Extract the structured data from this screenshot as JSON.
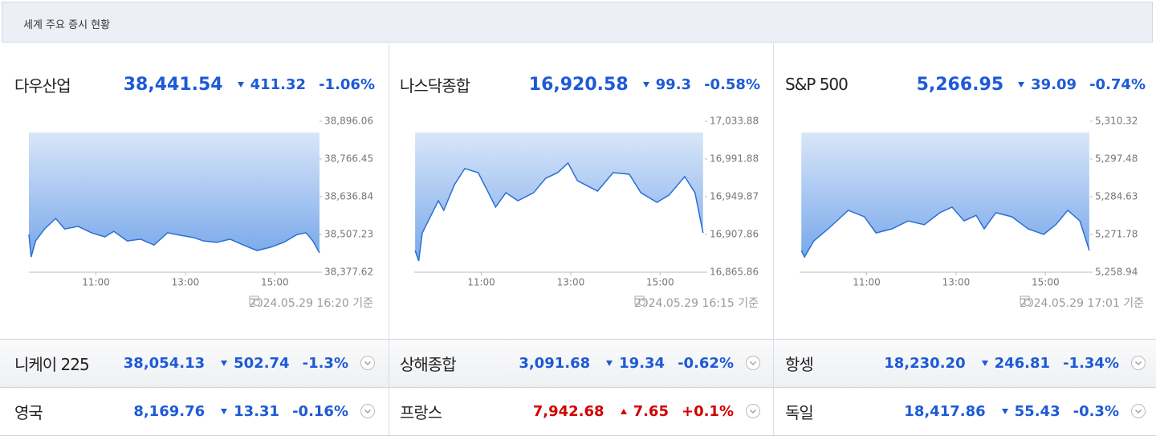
{
  "header": {
    "title": "세계 주요 증시 현황"
  },
  "chart_data": [
    {
      "type": "area",
      "title": "다우산업",
      "price": "38,441.54",
      "change": "411.32",
      "change_rate": "-1.06%",
      "trend": "down",
      "color": "#2a6fd6",
      "x": [
        9.5,
        9.55,
        9.65,
        9.85,
        10.1,
        10.3,
        10.6,
        10.9,
        11.2,
        11.4,
        11.7,
        12.0,
        12.3,
        12.6,
        12.9,
        13.2,
        13.4,
        13.7,
        14.0,
        14.3,
        14.6,
        14.9,
        15.2,
        15.5,
        15.7,
        15.85,
        16.0
      ],
      "values": [
        38507.2,
        38430,
        38485,
        38526,
        38562,
        38526,
        38535,
        38513,
        38499,
        38518,
        38485,
        38491,
        38471,
        38513,
        38504,
        38496,
        38485,
        38480,
        38491,
        38471,
        38452,
        38463,
        38480,
        38507,
        38513,
        38485,
        38444
      ],
      "xlim": [
        9.5,
        16.0
      ],
      "xticks": [
        {
          "value": 11,
          "label": "11:00"
        },
        {
          "value": 13,
          "label": "13:00"
        },
        {
          "value": 15,
          "label": "15:00"
        }
      ],
      "ylim": [
        38377.62,
        38896.06
      ],
      "yticks": [
        {
          "value": 38377.62,
          "label": "38,377.62"
        },
        {
          "value": 38507.23,
          "label": "38,507.23"
        },
        {
          "value": 38636.84,
          "label": "38,636.84"
        },
        {
          "value": 38766.45,
          "label": "38,766.45"
        },
        {
          "value": 38896.06,
          "label": "38,896.06"
        }
      ],
      "note": "2024.05.29 16:20 기준"
    },
    {
      "type": "area",
      "title": "나스닥종합",
      "price": "16,920.58",
      "change": "99.3",
      "change_rate": "-0.58%",
      "trend": "down",
      "color": "#2a6fd6",
      "x": [
        9.52,
        9.6,
        9.68,
        10.04,
        10.16,
        10.4,
        10.63,
        10.93,
        11.16,
        11.32,
        11.55,
        11.82,
        12.17,
        12.44,
        12.71,
        12.94,
        13.15,
        13.6,
        13.95,
        14.31,
        14.57,
        14.93,
        15.2,
        15.55,
        15.78,
        15.96
      ],
      "values": [
        16890.0,
        16878.4,
        16909.6,
        16945.4,
        16934.7,
        16963.3,
        16981.2,
        16976.7,
        16954.3,
        16938.3,
        16954.3,
        16945.4,
        16954.3,
        16970.4,
        16976.7,
        16987.4,
        16967.7,
        16956.1,
        16976.7,
        16974.9,
        16954.3,
        16943.6,
        16951.7,
        16972.2,
        16954.3,
        16909.6
      ],
      "xlim": [
        9.5,
        16.0
      ],
      "xticks": [
        {
          "value": 11,
          "label": "11:00"
        },
        {
          "value": 13,
          "label": "13:00"
        },
        {
          "value": 15,
          "label": "15:00"
        }
      ],
      "ylim": [
        16865.86,
        17033.88
      ],
      "yticks": [
        {
          "value": 16865.86,
          "label": "16,865.86"
        },
        {
          "value": 16907.86,
          "label": "16,907.86"
        },
        {
          "value": 16949.87,
          "label": "16,949.87"
        },
        {
          "value": 16991.88,
          "label": "16,991.88"
        },
        {
          "value": 17033.88,
          "label": "17,033.88"
        }
      ],
      "note": "2024.05.29 16:15 기준"
    },
    {
      "type": "area",
      "title": "S&P 500",
      "price": "5,266.95",
      "change": "39.09",
      "change_rate": "-0.74%",
      "trend": "down",
      "color": "#2a6fd6",
      "x": [
        9.54,
        9.61,
        9.82,
        10.14,
        10.59,
        10.95,
        11.21,
        11.57,
        11.93,
        12.29,
        12.64,
        12.91,
        13.18,
        13.45,
        13.63,
        13.89,
        14.25,
        14.61,
        14.96,
        15.23,
        15.5,
        15.77,
        15.98
      ],
      "values": [
        5266.32,
        5264.13,
        5269.6,
        5273.7,
        5280.0,
        5277.8,
        5272.3,
        5273.7,
        5276.4,
        5275.1,
        5279.2,
        5281.1,
        5276.4,
        5278.3,
        5273.7,
        5279.2,
        5277.8,
        5273.7,
        5271.8,
        5275.1,
        5280.0,
        5276.4,
        5266.3
      ],
      "xlim": [
        9.5,
        16.0
      ],
      "xticks": [
        {
          "value": 11,
          "label": "11:00"
        },
        {
          "value": 13,
          "label": "13:00"
        },
        {
          "value": 15,
          "label": "15:00"
        }
      ],
      "ylim": [
        5258.94,
        5310.32
      ],
      "yticks": [
        {
          "value": 5258.94,
          "label": "5,258.94"
        },
        {
          "value": 5271.78,
          "label": "5,271.78"
        },
        {
          "value": 5284.63,
          "label": "5,284.63"
        },
        {
          "value": 5297.48,
          "label": "5,297.48"
        },
        {
          "value": 5310.32,
          "label": "5,310.32"
        }
      ],
      "note": "2024.05.29 17:01 기준"
    }
  ],
  "tickers": [
    {
      "name": "니케이 225",
      "price": "38,054.13",
      "change": "502.74",
      "change_rate": "-1.3%",
      "trend": "down"
    },
    {
      "name": "상해종합",
      "price": "3,091.68",
      "change": "19.34",
      "change_rate": "-0.62%",
      "trend": "down"
    },
    {
      "name": "항셍",
      "price": "18,230.20",
      "change": "246.81",
      "change_rate": "-1.34%",
      "trend": "down"
    },
    {
      "name": "영국",
      "price": "8,169.76",
      "change": "13.31",
      "change_rate": "-0.16%",
      "trend": "down"
    },
    {
      "name": "프랑스",
      "price": "7,942.68",
      "change": "7.65",
      "change_rate": "+0.1%",
      "trend": "up"
    },
    {
      "name": "독일",
      "price": "18,417.86",
      "change": "55.43",
      "change_rate": "-0.3%",
      "trend": "down"
    }
  ]
}
